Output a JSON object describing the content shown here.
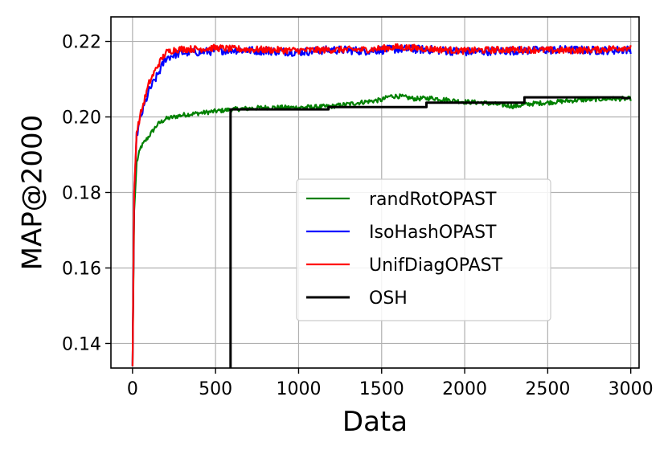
{
  "chart_data": {
    "type": "line",
    "title": "",
    "xlabel": "Data",
    "ylabel": "MAP@2000",
    "xlim": [
      -130,
      3050
    ],
    "ylim": [
      0.1335,
      0.2265
    ],
    "xticks": [
      0,
      500,
      1000,
      1500,
      2000,
      2500,
      3000
    ],
    "xtick_labels": [
      "0",
      "500",
      "1000",
      "1500",
      "2000",
      "2500",
      "3000"
    ],
    "yticks": [
      0.14,
      0.16,
      0.18,
      0.2,
      0.22
    ],
    "ytick_labels": [
      "0.14",
      "0.16",
      "0.18",
      "0.20",
      "0.22"
    ],
    "grid": true,
    "legend_position": "center-right",
    "series": [
      {
        "name": "randRotOPAST",
        "color": "#008000",
        "x": [
          0,
          10,
          25,
          50,
          100,
          150,
          200,
          300,
          400,
          500,
          600,
          800,
          1000,
          1200,
          1400,
          1500,
          1550,
          1600,
          1700,
          1800,
          1900,
          2000,
          2100,
          2200,
          2300,
          2400,
          2500,
          2600,
          2700,
          2800,
          2900,
          3000
        ],
        "y": [
          0.134,
          0.175,
          0.188,
          0.192,
          0.195,
          0.198,
          0.1995,
          0.2005,
          0.201,
          0.2015,
          0.202,
          0.2025,
          0.2025,
          0.2028,
          0.204,
          0.2045,
          0.2055,
          0.2055,
          0.2048,
          0.205,
          0.2045,
          0.204,
          0.2038,
          0.2033,
          0.2028,
          0.2035,
          0.2038,
          0.2042,
          0.2045,
          0.2047,
          0.2048,
          0.2048
        ]
      },
      {
        "name": "IsoHashOPAST",
        "color": "#0000ff",
        "x": [
          0,
          10,
          25,
          50,
          100,
          150,
          200,
          250,
          300,
          400,
          500,
          600,
          800,
          1000,
          1200,
          1400,
          1600,
          1800,
          2000,
          2200,
          2400,
          2600,
          2800,
          3000
        ],
        "y": [
          0.134,
          0.18,
          0.195,
          0.2,
          0.207,
          0.211,
          0.2155,
          0.2165,
          0.217,
          0.2172,
          0.2175,
          0.2178,
          0.2175,
          0.2172,
          0.2178,
          0.2175,
          0.218,
          0.2178,
          0.2172,
          0.2175,
          0.2176,
          0.2178,
          0.2176,
          0.2178
        ]
      },
      {
        "name": "UnifDiagOPAST",
        "color": "#ff0000",
        "x": [
          0,
          10,
          25,
          50,
          100,
          150,
          200,
          250,
          300,
          400,
          500,
          600,
          800,
          1000,
          1200,
          1400,
          1600,
          1800,
          2000,
          2200,
          2400,
          2600,
          2800,
          3000
        ],
        "y": [
          0.134,
          0.18,
          0.196,
          0.201,
          0.209,
          0.2135,
          0.217,
          0.2178,
          0.218,
          0.218,
          0.2183,
          0.218,
          0.2178,
          0.2176,
          0.2178,
          0.2178,
          0.2185,
          0.218,
          0.2175,
          0.2178,
          0.2178,
          0.2176,
          0.2178,
          0.2185
        ]
      },
      {
        "name": "OSH",
        "color": "#000000",
        "step": true,
        "x": [
          590,
          590,
          1180,
          1180,
          1770,
          1770,
          2360,
          2360,
          2950,
          2950,
          3000
        ],
        "y": [
          0.1335,
          0.202,
          0.202,
          0.2026,
          0.2026,
          0.2038,
          0.2038,
          0.2052,
          0.2052,
          0.205,
          0.205
        ]
      }
    ]
  }
}
